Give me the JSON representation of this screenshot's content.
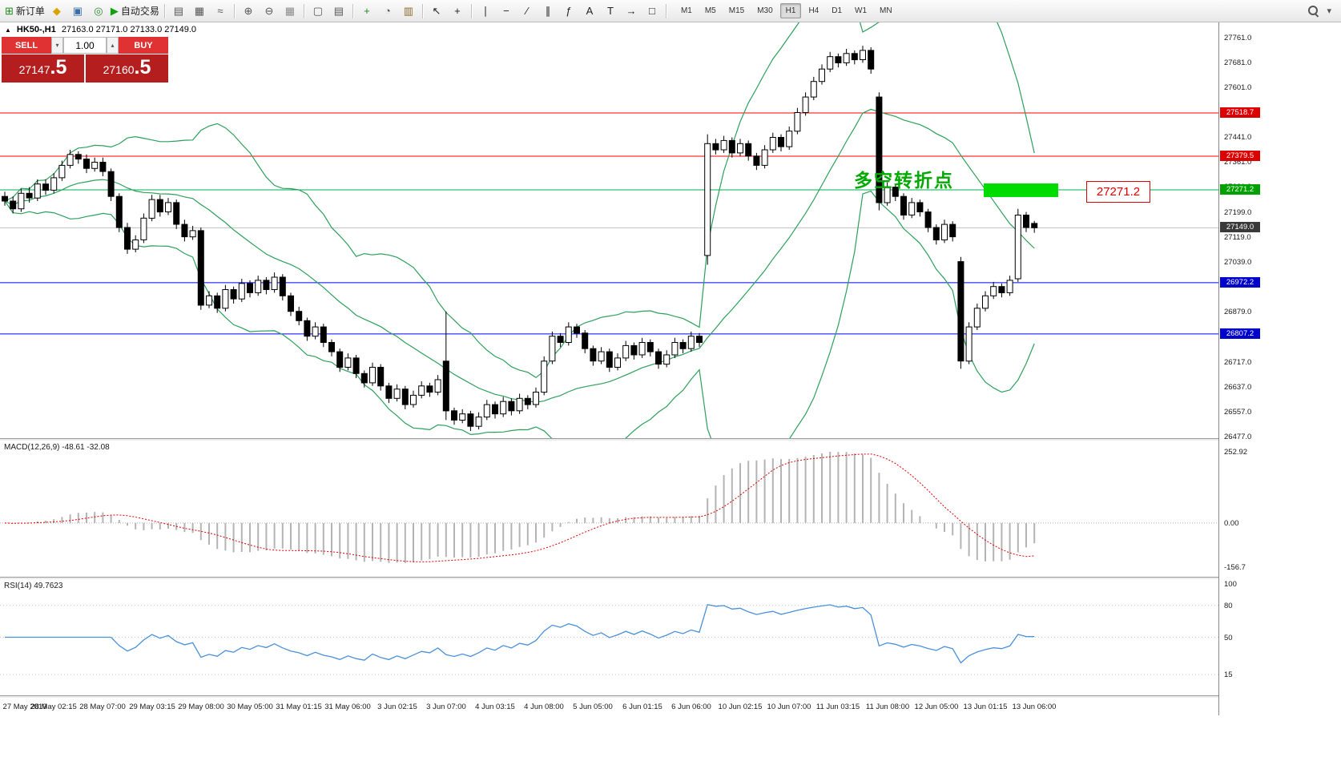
{
  "icons": {
    "collapse_arrow": "▲",
    "dropdown": "▾",
    "spin_up": "▴",
    "spin_down": "▾"
  },
  "toolbar": {
    "groups": [
      {
        "items": [
          {
            "name": "new-order-button",
            "glyph": "⊞",
            "color": "#1e8a1e",
            "label": "新订单"
          },
          {
            "name": "symbols-button",
            "glyph": "◆",
            "color": "#d8a400",
            "label": ""
          },
          {
            "name": "profiles-button",
            "glyph": "▣",
            "color": "#3a6ea5",
            "label": ""
          },
          {
            "name": "info-button",
            "glyph": "◎",
            "color": "#2e8b2e",
            "label": ""
          },
          {
            "name": "autotrading-button",
            "glyph": "▶",
            "color": "#12a012",
            "label": "自动交易"
          }
        ]
      },
      {
        "items": [
          {
            "name": "bars-chart-type-button",
            "glyph": "▤",
            "color": "#555555",
            "label": ""
          },
          {
            "name": "candles-chart-type-button",
            "glyph": "▦",
            "color": "#555555",
            "label": ""
          },
          {
            "name": "line-chart-type-button",
            "glyph": "≈",
            "color": "#555555",
            "label": ""
          }
        ]
      },
      {
        "items": [
          {
            "name": "zoom-in-button",
            "glyph": "⊕",
            "color": "#555555",
            "label": ""
          },
          {
            "name": "zoom-out-button",
            "glyph": "⊖",
            "color": "#555555",
            "label": ""
          },
          {
            "name": "grid-button",
            "glyph": "▦",
            "color": "#8a8a8a",
            "label": ""
          }
        ]
      },
      {
        "items": [
          {
            "name": "tile-windows-button",
            "glyph": "▢",
            "color": "#555555",
            "label": ""
          },
          {
            "name": "window-list-button",
            "glyph": "▤",
            "color": "#555555",
            "label": ""
          }
        ]
      },
      {
        "items": [
          {
            "name": "indicators-button",
            "glyph": "+",
            "color": "#1e8a1e",
            "label": ""
          },
          {
            "name": "periods-button",
            "glyph": "◔",
            "color": "#555555",
            "label": ""
          },
          {
            "name": "templates-button",
            "glyph": "▥",
            "color": "#8a6a2a",
            "label": ""
          }
        ]
      },
      {
        "items": [
          {
            "name": "cursor-button",
            "glyph": "↖",
            "color": "#222222",
            "label": ""
          },
          {
            "name": "crosshair-button",
            "glyph": "+",
            "color": "#222222",
            "label": ""
          }
        ]
      },
      {
        "items": [
          {
            "name": "vertical-line-button",
            "glyph": "∣",
            "color": "#222222",
            "label": ""
          },
          {
            "name": "horizontal-line-button",
            "glyph": "−",
            "color": "#222222",
            "label": ""
          },
          {
            "name": "trendline-button",
            "glyph": "∕",
            "color": "#222222",
            "label": ""
          },
          {
            "name": "channel-button",
            "glyph": "∥",
            "color": "#222222",
            "label": ""
          },
          {
            "name": "fibonacci-button",
            "glyph": "ƒ",
            "color": "#222222",
            "label": ""
          },
          {
            "name": "text-button",
            "glyph": "A",
            "color": "#222222",
            "label": ""
          },
          {
            "name": "label-button",
            "glyph": "T",
            "color": "#222222",
            "label": ""
          },
          {
            "name": "arrows-button",
            "glyph": "→",
            "color": "#222222",
            "label": ""
          },
          {
            "name": "shapes-button",
            "glyph": "□",
            "color": "#222222",
            "label": ""
          }
        ]
      }
    ],
    "timeframes": [
      "M1",
      "M5",
      "M15",
      "M30",
      "H1",
      "H4",
      "D1",
      "W1",
      "MN"
    ],
    "active_timeframe": "H1"
  },
  "trade_panel": {
    "sell_label": "SELL",
    "buy_label": "BUY",
    "volume": "1.00",
    "sell_price_int": "27147",
    "sell_price_frac": ".5",
    "buy_price_int": "27160",
    "buy_price_frac": ".5"
  },
  "chart": {
    "symbol_name": "HK50-,H1",
    "ohlc_text": "27163.0 27171.0 27133.0 27149.0",
    "annotation": {
      "text": "多空转折点",
      "color": "#00aa00"
    },
    "callout": {
      "text": "27271.2",
      "color": "#e00000"
    },
    "highlight_color": "#00dc00",
    "bollinger_color": "#2ca05a",
    "axis_ticks": [
      27761.0,
      27681.0,
      27601.0,
      27441.0,
      27361.0,
      27281.0,
      27199.0,
      27119.0,
      27039.0,
      26879.0,
      26717.0,
      26637.0,
      26557.0,
      26477.0
    ],
    "badges": [
      {
        "text": "27518.7",
        "price": 27518.7,
        "bg": "#dd0000"
      },
      {
        "text": "27379.5",
        "price": 27379.5,
        "bg": "#dd0000"
      },
      {
        "text": "27271.2",
        "price": 27271.2,
        "bg": "#00a000"
      },
      {
        "text": "27149.0",
        "price": 27149.0,
        "bg": "#3a3a3a"
      },
      {
        "text": "26972.2",
        "price": 26972.2,
        "bg": "#0000cc"
      },
      {
        "text": "26807.2",
        "price": 26807.2,
        "bg": "#0000cc"
      }
    ],
    "hlines": [
      {
        "price": 27518.7,
        "color": "#ff0000"
      },
      {
        "price": 27379.5,
        "color": "#ff0000"
      },
      {
        "price": 27271.2,
        "color": "#00b050"
      },
      {
        "price": 27149.0,
        "color": "#c0c0c0"
      },
      {
        "price": 26972.2,
        "color": "#0000ff"
      },
      {
        "price": 26807.2,
        "color": "#0000ff"
      }
    ]
  },
  "macd": {
    "title": "MACD(12,26,9) -48.61 -32.08",
    "axis_labels": [
      {
        "text": "252.92",
        "value": 252.92
      },
      {
        "text": "0.00",
        "value": 0
      },
      {
        "text": "-156.7",
        "value": -156.7
      }
    ]
  },
  "rsi": {
    "title": "RSI(14) 49.7623",
    "axis_labels": [
      {
        "text": "100",
        "value": 100
      },
      {
        "text": "80",
        "value": 80
      },
      {
        "text": "50",
        "value": 50
      },
      {
        "text": "15",
        "value": 15
      }
    ],
    "levels": [
      80,
      50,
      15
    ]
  },
  "time_axis": [
    "27 May 2019",
    "28 May 02:15",
    "28 May 07:00",
    "29 May 03:15",
    "29 May 08:00",
    "30 May 05:00",
    "31 May 01:15",
    "31 May 06:00",
    "3 Jun 02:15",
    "3 Jun 07:00",
    "4 Jun 03:15",
    "4 Jun 08:00",
    "5 Jun 05:00",
    "6 Jun 01:15",
    "6 Jun 06:00",
    "10 Jun 02:15",
    "10 Jun 07:00",
    "11 Jun 03:15",
    "11 Jun 08:00",
    "12 Jun 05:00",
    "13 Jun 01:15",
    "13 Jun 06:00"
  ],
  "chart_data": {
    "type": "candlestick",
    "symbol": "HK50-",
    "timeframe": "H1",
    "price_range": [
      26477.0,
      27761.0
    ],
    "indicators": {
      "bollinger": {
        "period": 20,
        "deviation": 2
      },
      "macd": {
        "fast": 12,
        "slow": 26,
        "signal": 9,
        "current_values": [
          -48.61,
          -32.08
        ],
        "scale": [
          -156.7,
          252.92
        ]
      },
      "rsi": {
        "period": 14,
        "current_value": 49.7623
      }
    },
    "ohlc": [
      [
        27250,
        27265,
        27220,
        27235
      ],
      [
        27235,
        27250,
        27195,
        27210
      ],
      [
        27210,
        27275,
        27200,
        27260
      ],
      [
        27260,
        27280,
        27230,
        27245
      ],
      [
        27245,
        27305,
        27235,
        27290
      ],
      [
        27290,
        27305,
        27255,
        27270
      ],
      [
        27270,
        27325,
        27260,
        27310
      ],
      [
        27310,
        27365,
        27300,
        27350
      ],
      [
        27350,
        27400,
        27340,
        27385
      ],
      [
        27385,
        27395,
        27355,
        27370
      ],
      [
        27370,
        27385,
        27325,
        27340
      ],
      [
        27340,
        27375,
        27330,
        27360
      ],
      [
        27360,
        27375,
        27315,
        27330
      ],
      [
        27330,
        27340,
        27235,
        27250
      ],
      [
        27250,
        27260,
        27135,
        27150
      ],
      [
        27150,
        27165,
        27065,
        27080
      ],
      [
        27080,
        27125,
        27070,
        27110
      ],
      [
        27110,
        27195,
        27100,
        27180
      ],
      [
        27180,
        27255,
        27170,
        27240
      ],
      [
        27240,
        27255,
        27185,
        27200
      ],
      [
        27200,
        27245,
        27190,
        27230
      ],
      [
        27230,
        27240,
        27145,
        27160
      ],
      [
        27160,
        27175,
        27105,
        27120
      ],
      [
        27120,
        27155,
        27110,
        27140
      ],
      [
        27140,
        27150,
        26885,
        26900
      ],
      [
        26900,
        26945,
        26890,
        26930
      ],
      [
        26930,
        26940,
        26875,
        26890
      ],
      [
        26890,
        26965,
        26880,
        26950
      ],
      [
        26950,
        26960,
        26905,
        26920
      ],
      [
        26920,
        26985,
        26910,
        26970
      ],
      [
        26970,
        26980,
        26925,
        26940
      ],
      [
        26940,
        26995,
        26930,
        26980
      ],
      [
        26980,
        26990,
        26935,
        26950
      ],
      [
        26950,
        27005,
        26940,
        26990
      ],
      [
        26990,
        27000,
        26915,
        26930
      ],
      [
        26930,
        26940,
        26865,
        26880
      ],
      [
        26880,
        26895,
        26835,
        26850
      ],
      [
        26850,
        26860,
        26785,
        26800
      ],
      [
        26800,
        26845,
        26790,
        26830
      ],
      [
        26830,
        26840,
        26765,
        26780
      ],
      [
        26780,
        26790,
        26735,
        26750
      ],
      [
        26750,
        26760,
        26685,
        26700
      ],
      [
        26700,
        26745,
        26690,
        26730
      ],
      [
        26730,
        26740,
        26665,
        26680
      ],
      [
        26680,
        26690,
        26635,
        26650
      ],
      [
        26650,
        26715,
        26640,
        26700
      ],
      [
        26700,
        26710,
        26625,
        26640
      ],
      [
        26640,
        26650,
        26585,
        26600
      ],
      [
        26600,
        26645,
        26590,
        26630
      ],
      [
        26630,
        26640,
        26565,
        26580
      ],
      [
        26580,
        26625,
        26570,
        26610
      ],
      [
        26610,
        26655,
        26600,
        26640
      ],
      [
        26640,
        26650,
        26605,
        26620
      ],
      [
        26620,
        26675,
        26610,
        26660
      ],
      [
        26720,
        26880,
        26530,
        26560
      ],
      [
        26560,
        26570,
        26515,
        26530
      ],
      [
        26530,
        26565,
        26520,
        26550
      ],
      [
        26550,
        26560,
        26495,
        26510
      ],
      [
        26510,
        26555,
        26500,
        26540
      ],
      [
        26540,
        26595,
        26530,
        26580
      ],
      [
        26580,
        26590,
        26535,
        26550
      ],
      [
        26550,
        26605,
        26540,
        26590
      ],
      [
        26590,
        26600,
        26545,
        26560
      ],
      [
        26560,
        26615,
        26550,
        26600
      ],
      [
        26600,
        26610,
        26565,
        26580
      ],
      [
        26580,
        26635,
        26570,
        26620
      ],
      [
        26620,
        26735,
        26610,
        26720
      ],
      [
        26720,
        26815,
        26710,
        26800
      ],
      [
        26800,
        26810,
        26765,
        26780
      ],
      [
        26780,
        26845,
        26770,
        26830
      ],
      [
        26830,
        26840,
        26795,
        26810
      ],
      [
        26810,
        26820,
        26745,
        26760
      ],
      [
        26760,
        26770,
        26705,
        26720
      ],
      [
        26720,
        26765,
        26710,
        26750
      ],
      [
        26750,
        26760,
        26685,
        26700
      ],
      [
        26700,
        26745,
        26690,
        26730
      ],
      [
        26730,
        26785,
        26720,
        26770
      ],
      [
        26770,
        26780,
        26725,
        26740
      ],
      [
        26740,
        26795,
        26730,
        26780
      ],
      [
        26780,
        26790,
        26735,
        26750
      ],
      [
        26750,
        26760,
        26695,
        26710
      ],
      [
        26710,
        26755,
        26700,
        26740
      ],
      [
        26740,
        26795,
        26730,
        26780
      ],
      [
        26780,
        26790,
        26745,
        26760
      ],
      [
        26760,
        26815,
        26750,
        26800
      ],
      [
        26800,
        26810,
        26765,
        26780
      ],
      [
        27060,
        27450,
        27030,
        27420
      ],
      [
        27420,
        27435,
        27385,
        27400
      ],
      [
        27400,
        27445,
        27390,
        27430
      ],
      [
        27430,
        27440,
        27375,
        27390
      ],
      [
        27390,
        27435,
        27380,
        27420
      ],
      [
        27420,
        27430,
        27365,
        27380
      ],
      [
        27380,
        27390,
        27335,
        27350
      ],
      [
        27350,
        27415,
        27340,
        27400
      ],
      [
        27400,
        27455,
        27390,
        27440
      ],
      [
        27440,
        27450,
        27395,
        27410
      ],
      [
        27410,
        27475,
        27400,
        27460
      ],
      [
        27460,
        27535,
        27450,
        27520
      ],
      [
        27520,
        27585,
        27510,
        27570
      ],
      [
        27570,
        27635,
        27560,
        27620
      ],
      [
        27620,
        27675,
        27610,
        27660
      ],
      [
        27660,
        27715,
        27650,
        27700
      ],
      [
        27700,
        27710,
        27665,
        27680
      ],
      [
        27680,
        27725,
        27670,
        27710
      ],
      [
        27710,
        27720,
        27675,
        27690
      ],
      [
        27690,
        27735,
        27680,
        27720
      ],
      [
        27720,
        27730,
        27645,
        27660
      ],
      [
        27570,
        27585,
        27205,
        27230
      ],
      [
        27230,
        27295,
        27220,
        27280
      ],
      [
        27280,
        27290,
        27235,
        27250
      ],
      [
        27250,
        27260,
        27175,
        27190
      ],
      [
        27190,
        27245,
        27180,
        27230
      ],
      [
        27230,
        27240,
        27185,
        27200
      ],
      [
        27200,
        27210,
        27135,
        27150
      ],
      [
        27150,
        27160,
        27095,
        27110
      ],
      [
        27110,
        27175,
        27100,
        27160
      ],
      [
        27160,
        27170,
        27105,
        27120
      ],
      [
        27040,
        27055,
        26695,
        26720
      ],
      [
        26720,
        26845,
        26710,
        26830
      ],
      [
        26830,
        26905,
        26820,
        26890
      ],
      [
        26890,
        26945,
        26880,
        26930
      ],
      [
        26930,
        26975,
        26920,
        26960
      ],
      [
        26960,
        26970,
        26925,
        26940
      ],
      [
        26940,
        26995,
        26930,
        26980
      ],
      [
        26985,
        27210,
        26975,
        27190
      ],
      [
        27190,
        27200,
        27135,
        27150
      ],
      [
        27163,
        27171,
        27133,
        27149
      ]
    ]
  }
}
